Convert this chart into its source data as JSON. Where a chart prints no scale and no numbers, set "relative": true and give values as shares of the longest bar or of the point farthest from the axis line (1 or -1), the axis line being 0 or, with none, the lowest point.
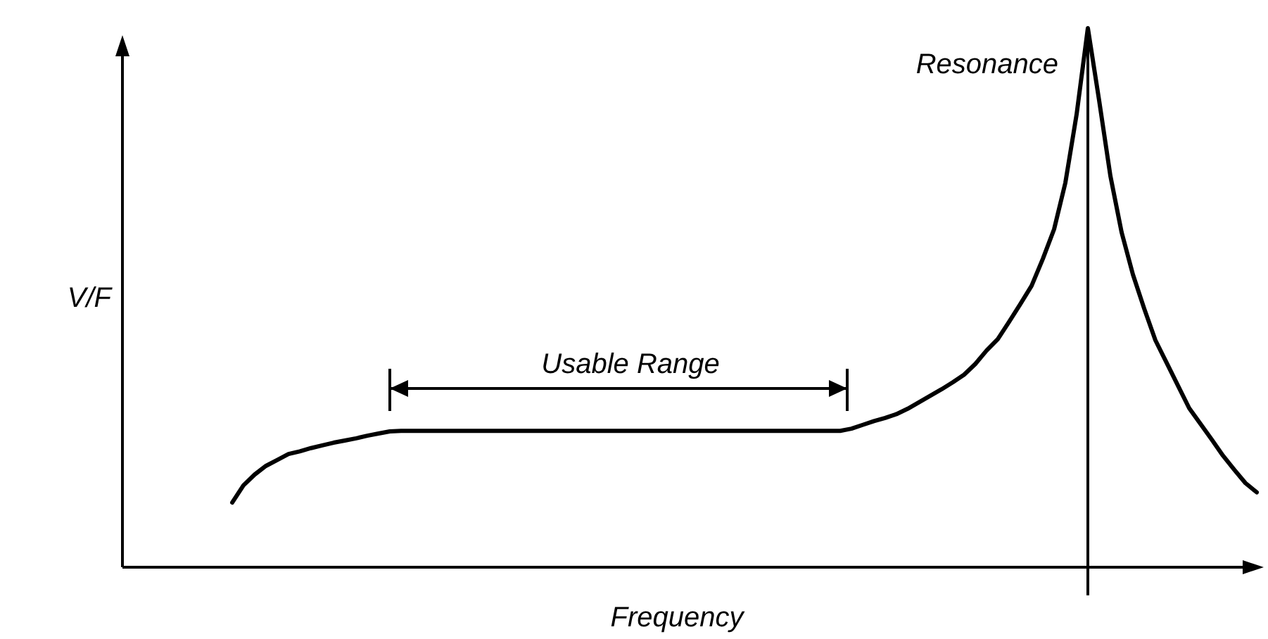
{
  "chart_data": {
    "type": "line",
    "relative": true,
    "xlabel": "Frequency",
    "ylabel": "V/F",
    "line_style": "solid",
    "annotations": [
      "Resonance",
      "Usable Range"
    ],
    "categories": [
      null,
      null,
      null,
      null,
      null,
      null,
      null,
      null,
      null,
      null,
      null,
      null,
      null,
      null,
      null,
      null,
      null,
      null,
      null,
      null,
      null,
      null,
      null,
      null,
      null,
      null,
      null,
      null,
      null,
      null,
      null,
      null,
      null,
      null,
      null,
      null,
      null,
      null,
      null,
      null,
      null,
      null,
      null,
      null,
      null,
      null,
      null,
      null,
      null,
      null,
      null,
      null,
      null,
      null,
      null,
      null,
      null,
      null,
      null,
      null,
      null,
      null,
      null,
      null,
      null,
      null,
      null,
      null,
      null,
      null,
      null,
      null,
      null,
      null,
      null,
      null,
      null,
      null,
      null,
      null,
      null,
      null,
      null,
      null,
      null,
      null,
      null,
      null,
      null,
      null,
      null,
      null
    ],
    "series": [
      {
        "color": "#000000",
        "values": [
          0.12,
          0.152,
          0.172,
          0.188,
          0.199,
          0.21,
          0.215,
          0.221,
          0.226,
          0.231,
          0.235,
          0.239,
          0.244,
          0.248,
          0.252,
          0.253,
          0.253,
          0.253,
          0.253,
          0.253,
          0.253,
          0.253,
          0.253,
          0.253,
          0.253,
          0.253,
          0.253,
          0.253,
          0.253,
          0.253,
          0.253,
          0.253,
          0.253,
          0.253,
          0.253,
          0.253,
          0.253,
          0.253,
          0.253,
          0.253,
          0.253,
          0.253,
          0.253,
          0.253,
          0.253,
          0.253,
          0.253,
          0.253,
          0.253,
          0.253,
          0.253,
          0.253,
          0.253,
          0.253,
          0.253,
          0.257,
          0.264,
          0.271,
          0.277,
          0.284,
          0.294,
          0.306,
          0.318,
          0.33,
          0.343,
          0.357,
          0.377,
          0.402,
          0.423,
          0.455,
          0.488,
          0.522,
          0.572,
          0.627,
          0.713,
          0.84,
          1,
          0.866,
          0.726,
          0.621,
          0.543,
          0.48,
          0.421,
          0.379,
          0.337,
          0.295,
          0.266,
          0.237,
          0.207,
          0.181,
          0.156,
          0.139
        ]
      }
    ]
  }
}
